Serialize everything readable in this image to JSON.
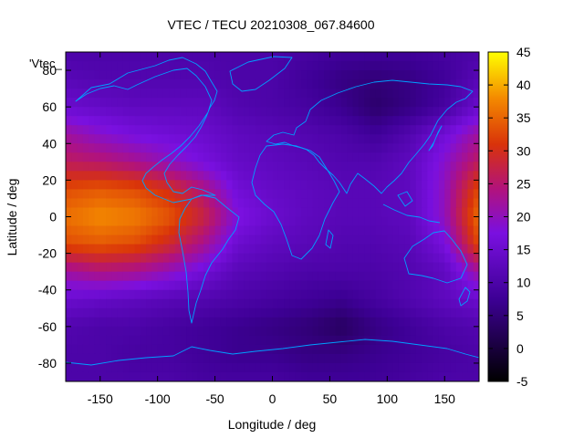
{
  "chart_data": {
    "type": "heatmap",
    "title": "VTEC / TECU 20210308_067.84600",
    "xlabel": "Longitude / deg",
    "ylabel": "Latitude / deg",
    "key_label": "'Vtec_",
    "xlim": [
      -180,
      180
    ],
    "ylim": [
      -90,
      90
    ],
    "xticks": [
      -150,
      -100,
      -50,
      0,
      50,
      100,
      150
    ],
    "yticks": [
      -80,
      -60,
      -40,
      -20,
      0,
      20,
      40,
      60,
      80
    ],
    "zlim": [
      -5,
      45
    ],
    "cbticks": [
      -5,
      0,
      5,
      10,
      15,
      20,
      25,
      30,
      35,
      40,
      45
    ],
    "grid": false,
    "colormap": "gnuplot-pm3d (black-purple-red-yellow)",
    "coastline_color": "#00a0ff",
    "lon": [
      -180,
      -150,
      -120,
      -90,
      -60,
      -30,
      0,
      30,
      60,
      90,
      120,
      150,
      180
    ],
    "lat": [
      90,
      75,
      60,
      45,
      30,
      15,
      0,
      -15,
      -30,
      -45,
      -60,
      -75,
      -90
    ],
    "values": [
      [
        10,
        10,
        10,
        10,
        10,
        10,
        10,
        9,
        8,
        8,
        8,
        9,
        10
      ],
      [
        12,
        11,
        11,
        11,
        11,
        10,
        10,
        8,
        6,
        5,
        6,
        8,
        12
      ],
      [
        15,
        14,
        13,
        13,
        13,
        11,
        10,
        9,
        7,
        4,
        6,
        9,
        15
      ],
      [
        22,
        19,
        17,
        16,
        15,
        13,
        12,
        11,
        10,
        8,
        11,
        16,
        22
      ],
      [
        26,
        25,
        23,
        20,
        17,
        14,
        13,
        12,
        11,
        11,
        13,
        19,
        26
      ],
      [
        33,
        34,
        33,
        30,
        24,
        16,
        14,
        13,
        12,
        12,
        13,
        20,
        33
      ],
      [
        36,
        38,
        37,
        34,
        28,
        18,
        15,
        13,
        12,
        12,
        13,
        20,
        36
      ],
      [
        33,
        34,
        33,
        29,
        23,
        15,
        13,
        12,
        11,
        11,
        12,
        17,
        33
      ],
      [
        22,
        24,
        23,
        20,
        16,
        12,
        11,
        10,
        10,
        10,
        11,
        13,
        22
      ],
      [
        15,
        14,
        13,
        12,
        11,
        10,
        9,
        8,
        7,
        9,
        11,
        13,
        15
      ],
      [
        11,
        10,
        10,
        9,
        8,
        7,
        6,
        5,
        3,
        6,
        8,
        10,
        11
      ],
      [
        10,
        10,
        9,
        9,
        8,
        7,
        7,
        6,
        6,
        7,
        8,
        9,
        10
      ],
      [
        10,
        10,
        10,
        10,
        9,
        9,
        9,
        8,
        8,
        8,
        9,
        10,
        10
      ]
    ]
  }
}
